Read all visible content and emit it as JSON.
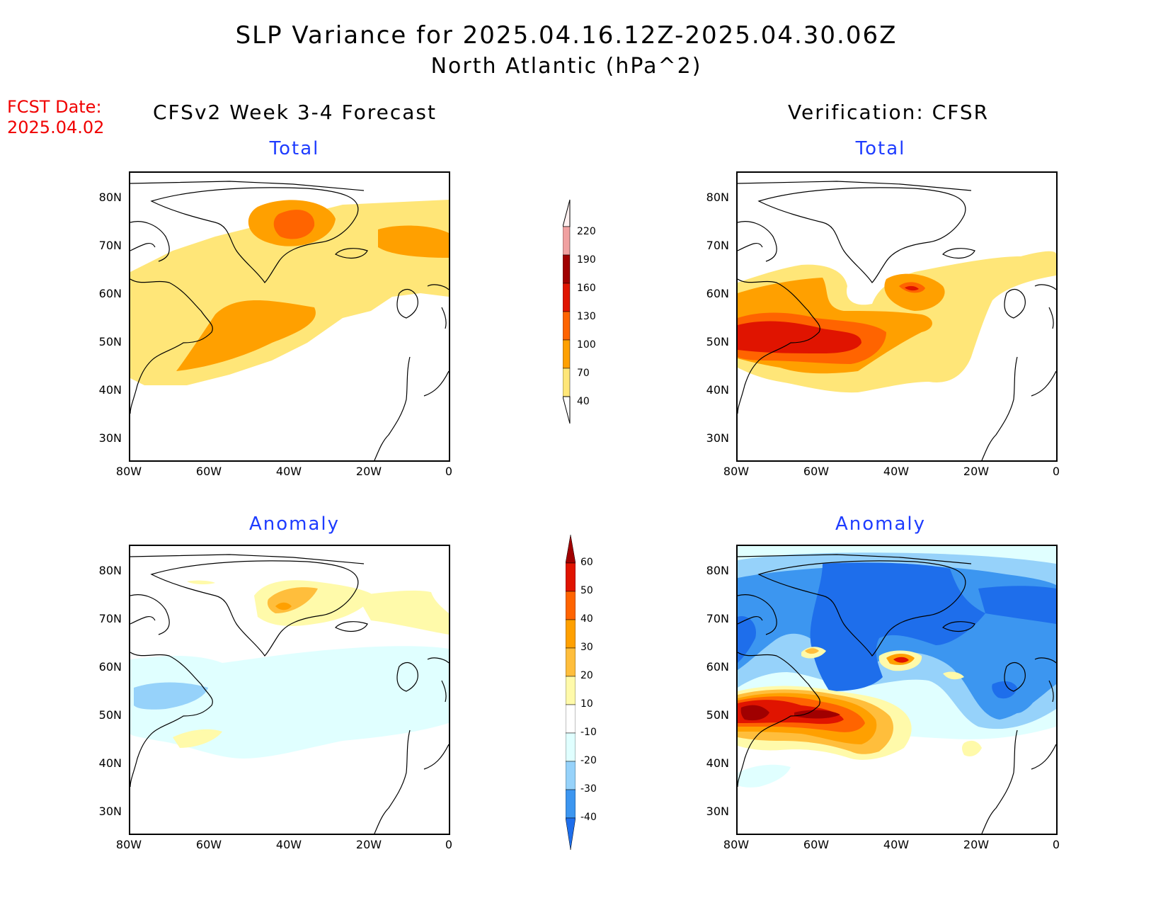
{
  "title": {
    "line1": "SLP Variance for 2025.04.16.12Z-2025.04.30.06Z",
    "line2": "North Atlantic (hPa^2)"
  },
  "forecast_date": {
    "label": "FCST Date:",
    "value": "2025.04.02"
  },
  "columns": {
    "left": "CFSv2 Week 3-4 Forecast",
    "right": "Verification: CFSR"
  },
  "panels": {
    "fc_total": "Total",
    "fc_anom": "Anomaly",
    "ver_total": "Total",
    "ver_anom": "Anomaly"
  },
  "lat_ticks": [
    "80N",
    "70N",
    "60N",
    "50N",
    "40N",
    "30N"
  ],
  "lon_ticks": [
    "80W",
    "60W",
    "40W",
    "20W",
    "0"
  ],
  "total_colorbar": {
    "levels": [
      "220",
      "190",
      "160",
      "130",
      "100",
      "70",
      "40"
    ],
    "colors": [
      "#fff0f0",
      "#f0a0a0",
      "#a00000",
      "#e01400",
      "#ff6400",
      "#ffa000",
      "#ffe678"
    ]
  },
  "anomaly_colorbar": {
    "levels": [
      "60",
      "50",
      "40",
      "30",
      "20",
      "10",
      "-10",
      "-20",
      "-30",
      "-40"
    ],
    "colors": [
      "#a00000",
      "#e01400",
      "#ff6400",
      "#ffa000",
      "#ffbe3c",
      "#fffaaa",
      "#ffffff",
      "#e0ffff",
      "#96d2fa",
      "#3c96f0",
      "#1e6eeb"
    ]
  }
}
